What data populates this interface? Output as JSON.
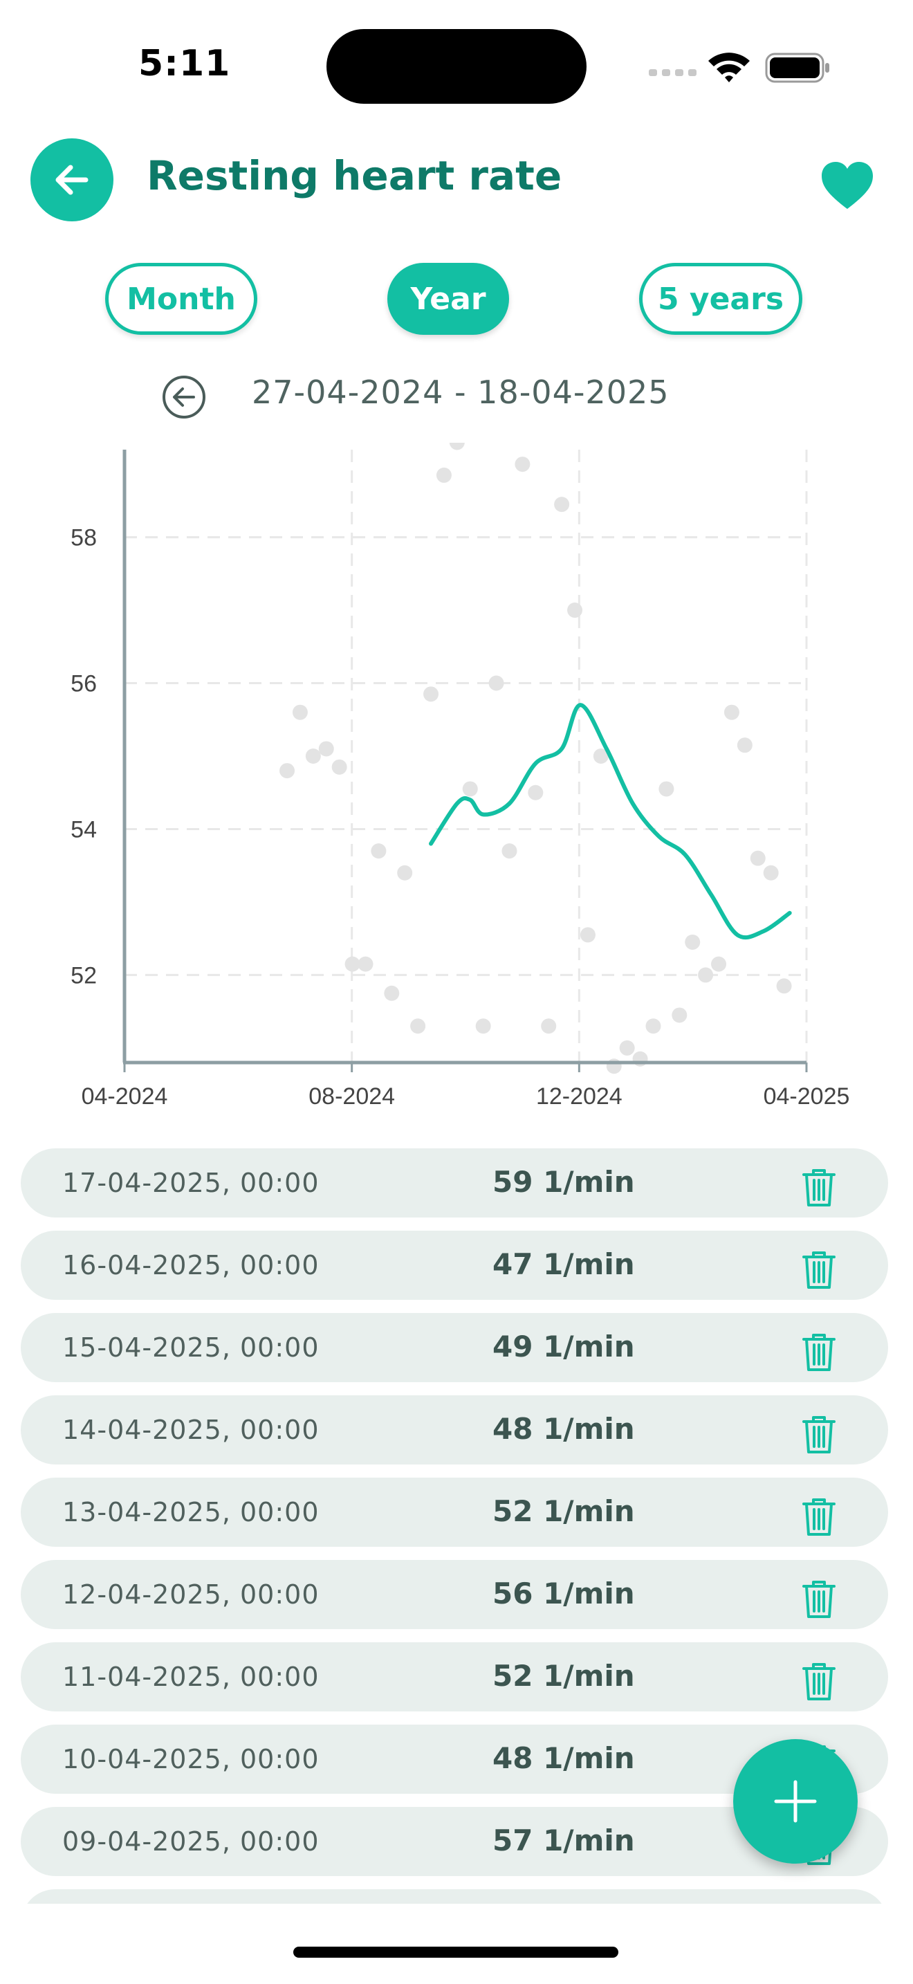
{
  "status_bar": {
    "time": "5:11"
  },
  "header": {
    "title": "Resting heart rate",
    "back_icon": "arrow-left-icon",
    "favorite_icon": "heart-icon"
  },
  "range_tabs": [
    {
      "label": "Month",
      "selected": false
    },
    {
      "label": "Year",
      "selected": true
    },
    {
      "label": "5 years",
      "selected": false
    }
  ],
  "date_range": {
    "label": "27-04-2024 - 18-04-2025"
  },
  "chart_data": {
    "type": "scatter",
    "x_ticks": [
      "04-2024",
      "08-2024",
      "12-2024",
      "04-2025"
    ],
    "y_ticks": [
      "52",
      "54",
      "56",
      "58"
    ],
    "ylim": [
      50.8,
      59.2
    ],
    "xlim": [
      "2024-04",
      "2025-04"
    ],
    "grid": true,
    "points": [
      {
        "x": "2024-06-27",
        "y": 54.8
      },
      {
        "x": "2024-07-04",
        "y": 55.6
      },
      {
        "x": "2024-07-11",
        "y": 55.0
      },
      {
        "x": "2024-07-18",
        "y": 55.1
      },
      {
        "x": "2024-07-25",
        "y": 54.85
      },
      {
        "x": "2024-08-01",
        "y": 52.15
      },
      {
        "x": "2024-08-08",
        "y": 52.15
      },
      {
        "x": "2024-08-15",
        "y": 53.7
      },
      {
        "x": "2024-08-22",
        "y": 51.75
      },
      {
        "x": "2024-08-29",
        "y": 53.4
      },
      {
        "x": "2024-09-05",
        "y": 51.3
      },
      {
        "x": "2024-09-12",
        "y": 55.85
      },
      {
        "x": "2024-09-19",
        "y": 58.85
      },
      {
        "x": "2024-09-26",
        "y": 59.3
      },
      {
        "x": "2024-10-03",
        "y": 54.55
      },
      {
        "x": "2024-10-10",
        "y": 51.3
      },
      {
        "x": "2024-10-17",
        "y": 56.0
      },
      {
        "x": "2024-10-24",
        "y": 53.7
      },
      {
        "x": "2024-10-31",
        "y": 59.0
      },
      {
        "x": "2024-11-07",
        "y": 54.5
      },
      {
        "x": "2024-11-14",
        "y": 51.3
      },
      {
        "x": "2024-11-21",
        "y": 58.45
      },
      {
        "x": "2024-11-28",
        "y": 57.0
      },
      {
        "x": "2024-12-05",
        "y": 52.55
      },
      {
        "x": "2024-12-12",
        "y": 55.0
      },
      {
        "x": "2024-12-19",
        "y": 50.75
      },
      {
        "x": "2024-12-26",
        "y": 51.0
      },
      {
        "x": "2025-01-02",
        "y": 50.85
      },
      {
        "x": "2025-01-09",
        "y": 51.3
      },
      {
        "x": "2025-01-16",
        "y": 54.55
      },
      {
        "x": "2025-01-23",
        "y": 51.45
      },
      {
        "x": "2025-01-30",
        "y": 52.45
      },
      {
        "x": "2025-02-06",
        "y": 52.0
      },
      {
        "x": "2025-02-13",
        "y": 52.15
      },
      {
        "x": "2025-02-20",
        "y": 55.6
      },
      {
        "x": "2025-02-27",
        "y": 55.15
      },
      {
        "x": "2025-03-06",
        "y": 53.6
      },
      {
        "x": "2025-03-13",
        "y": 53.4
      },
      {
        "x": "2025-03-20",
        "y": 51.85
      }
    ],
    "trend": [
      {
        "x": "2024-09-12",
        "y": 53.8
      },
      {
        "x": "2024-09-26",
        "y": 54.35
      },
      {
        "x": "2024-10-03",
        "y": 54.4
      },
      {
        "x": "2024-10-10",
        "y": 54.2
      },
      {
        "x": "2024-10-24",
        "y": 54.35
      },
      {
        "x": "2024-11-07",
        "y": 54.9
      },
      {
        "x": "2024-11-21",
        "y": 55.1
      },
      {
        "x": "2024-12-01",
        "y": 55.7
      },
      {
        "x": "2024-12-15",
        "y": 55.1
      },
      {
        "x": "2024-12-29",
        "y": 54.35
      },
      {
        "x": "2025-01-12",
        "y": 53.9
      },
      {
        "x": "2025-01-26",
        "y": 53.65
      },
      {
        "x": "2025-02-09",
        "y": 53.1
      },
      {
        "x": "2025-02-23",
        "y": 52.55
      },
      {
        "x": "2025-03-09",
        "y": 52.6
      },
      {
        "x": "2025-03-23",
        "y": 52.85
      }
    ],
    "colors": {
      "points": "#e3e3e3",
      "trend": "#13bfa3",
      "axis": "#8d9ea3",
      "grid": "#e8e8e8"
    }
  },
  "entries": [
    {
      "date": "17-04-2025, 00:00",
      "value": "59 1/min"
    },
    {
      "date": "16-04-2025, 00:00",
      "value": "47 1/min"
    },
    {
      "date": "15-04-2025, 00:00",
      "value": "49 1/min"
    },
    {
      "date": "14-04-2025, 00:00",
      "value": "48 1/min"
    },
    {
      "date": "13-04-2025, 00:00",
      "value": "52 1/min"
    },
    {
      "date": "12-04-2025, 00:00",
      "value": "56 1/min"
    },
    {
      "date": "11-04-2025, 00:00",
      "value": "52 1/min"
    },
    {
      "date": "10-04-2025, 00:00",
      "value": "48 1/min"
    },
    {
      "date": "09-04-2025, 00:00",
      "value": "57 1/min"
    }
  ],
  "fab": {
    "icon": "plus-icon"
  },
  "colors": {
    "accent": "#13bfa3",
    "title": "#0e7a68",
    "row_bg": "#e8efed"
  }
}
